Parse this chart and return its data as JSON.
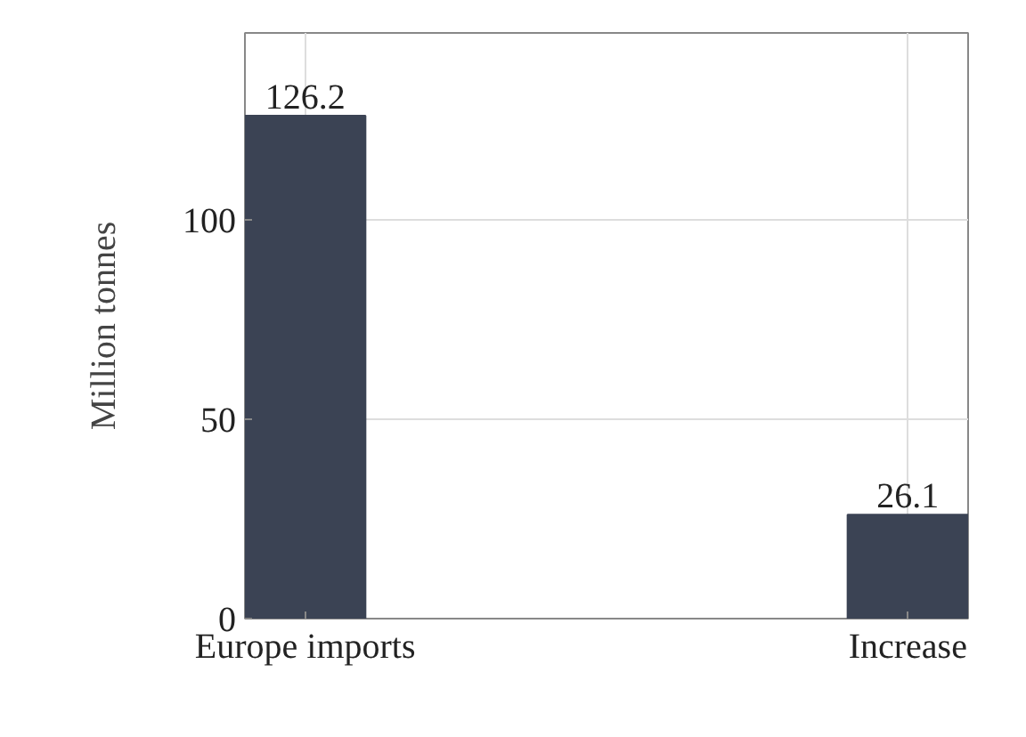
{
  "chart_data": {
    "type": "bar",
    "categories": [
      "Europe imports",
      "Increase"
    ],
    "values": [
      126.2,
      26.1
    ],
    "color": "#3b4354",
    "ylabel": "Million tonnes",
    "ylim": [
      0,
      147
    ],
    "yticks": [
      0,
      50,
      100
    ],
    "grid": true,
    "data_labels": true
  }
}
